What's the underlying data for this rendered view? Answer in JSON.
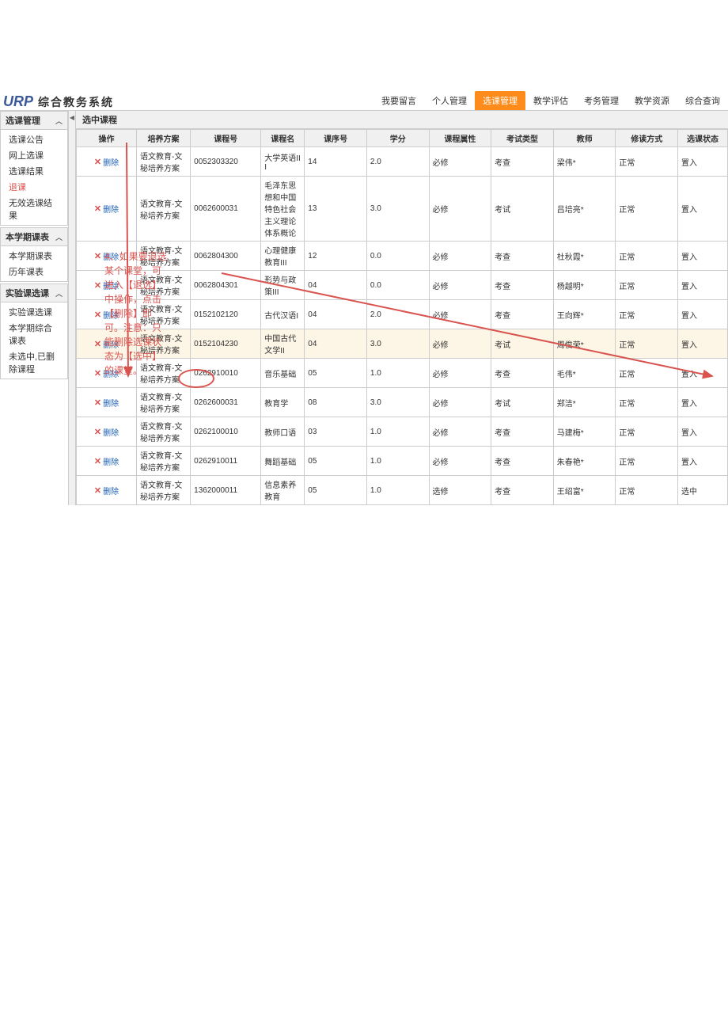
{
  "logo_main": "URP",
  "logo_sub": "综合教务系统",
  "nav": [
    {
      "label": "我要留言",
      "active": false
    },
    {
      "label": "个人管理",
      "active": false
    },
    {
      "label": "选课管理",
      "active": true
    },
    {
      "label": "教学评估",
      "active": false
    },
    {
      "label": "考务管理",
      "active": false
    },
    {
      "label": "教学资源",
      "active": false
    },
    {
      "label": "综合查询",
      "active": false
    }
  ],
  "sidebar": [
    {
      "title": "选课管理",
      "items": [
        {
          "label": "选课公告",
          "hl": false
        },
        {
          "label": "网上选课",
          "hl": false
        },
        {
          "label": "选课结果",
          "hl": false
        },
        {
          "label": "退课",
          "hl": true
        },
        {
          "label": "无效选课结果",
          "hl": false
        }
      ]
    },
    {
      "title": "本学期课表",
      "items": [
        {
          "label": "本学期课表",
          "hl": false
        },
        {
          "label": "历年课表",
          "hl": false
        }
      ]
    },
    {
      "title": "实验课选课",
      "items": [
        {
          "label": "实验课选课",
          "hl": false
        },
        {
          "label": "本学期综合课表",
          "hl": false
        },
        {
          "label": "未选中,已删除课程",
          "hl": false
        }
      ]
    }
  ],
  "content_title": "选中课程",
  "columns": [
    "操作",
    "培养方案",
    "课程号",
    "课程名",
    "课序号",
    "学分",
    "课程属性",
    "考试类型",
    "教师",
    "修读方式",
    "选课状态"
  ],
  "delete_label": "删除",
  "rows": [
    {
      "plan": "语文教育-文秘培养方案",
      "cno": "0052303320",
      "cname": "大学英语III",
      "seq": "14",
      "credit": "2.0",
      "attr": "必修",
      "exam": "考查",
      "teacher": "梁伟*",
      "method": "正常",
      "status": "置入",
      "hl": false
    },
    {
      "plan": "语文教育-文秘培养方案",
      "cno": "0062600031",
      "cname": "毛泽东思想和中国特色社会主义理论体系概论",
      "seq": "13",
      "credit": "3.0",
      "attr": "必修",
      "exam": "考试",
      "teacher": "吕培亮*",
      "method": "正常",
      "status": "置入",
      "hl": false
    },
    {
      "plan": "语文教育-文秘培养方案",
      "cno": "0062804300",
      "cname": "心理健康教育III",
      "seq": "12",
      "credit": "0.0",
      "attr": "必修",
      "exam": "考查",
      "teacher": "杜秋霞*",
      "method": "正常",
      "status": "置入",
      "hl": false
    },
    {
      "plan": "语文教育-文秘培养方案",
      "cno": "0062804301",
      "cname": "形势与政策III",
      "seq": "04",
      "credit": "0.0",
      "attr": "必修",
      "exam": "考查",
      "teacher": "杨越明*",
      "method": "正常",
      "status": "置入",
      "hl": false
    },
    {
      "plan": "语文教育-文秘培养方案",
      "cno": "0152102120",
      "cname": "古代汉语I",
      "seq": "04",
      "credit": "2.0",
      "attr": "必修",
      "exam": "考查",
      "teacher": "王向辉*",
      "method": "正常",
      "status": "置入",
      "hl": false
    },
    {
      "plan": "语文教育-文秘培养方案",
      "cno": "0152104230",
      "cname": "中国古代文学II",
      "seq": "04",
      "credit": "3.0",
      "attr": "必修",
      "exam": "考试",
      "teacher": "周俊荣*",
      "method": "正常",
      "status": "置入",
      "hl": true
    },
    {
      "plan": "语文教育-文秘培养方案",
      "cno": "0262910010",
      "cname": "音乐基础",
      "seq": "05",
      "credit": "1.0",
      "attr": "必修",
      "exam": "考查",
      "teacher": "毛伟*",
      "method": "正常",
      "status": "置入",
      "hl": false
    },
    {
      "plan": "语文教育-文秘培养方案",
      "cno": "0262600031",
      "cname": "教育学",
      "seq": "08",
      "credit": "3.0",
      "attr": "必修",
      "exam": "考试",
      "teacher": "郑洁*",
      "method": "正常",
      "status": "置入",
      "hl": false
    },
    {
      "plan": "语文教育-文秘培养方案",
      "cno": "0262100010",
      "cname": "教师口语",
      "seq": "03",
      "credit": "1.0",
      "attr": "必修",
      "exam": "考查",
      "teacher": "马建梅*",
      "method": "正常",
      "status": "置入",
      "hl": false
    },
    {
      "plan": "语文教育-文秘培养方案",
      "cno": "0262910011",
      "cname": "舞蹈基础",
      "seq": "05",
      "credit": "1.0",
      "attr": "必修",
      "exam": "考查",
      "teacher": "朱春艳*",
      "method": "正常",
      "status": "置入",
      "hl": false
    },
    {
      "plan": "语文教育-文秘培养方案",
      "cno": "1362000011",
      "cname": "信息素养教育",
      "seq": "05",
      "credit": "1.0",
      "attr": "选修",
      "exam": "考查",
      "teacher": "王绍富*",
      "method": "正常",
      "status": "选中",
      "hl": false
    }
  ],
  "annotation_text": "4、如果要退选某个课堂，可进入【退选】中操作，点击【删除】即可。注意：只能删除选课状态为【选中】的课堂。",
  "arrow_color": "#d9534f"
}
